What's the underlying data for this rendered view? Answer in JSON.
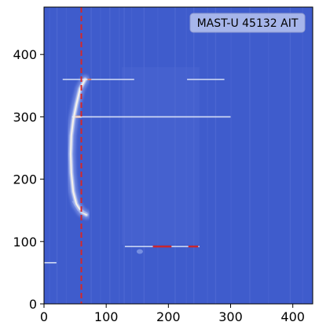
{
  "chart_data": {
    "type": "heatmap",
    "annotation": "MAST-U 45132 AIT",
    "xlim": [
      0,
      432
    ],
    "ylim": [
      0,
      476
    ],
    "x_ticks": [
      0,
      100,
      200,
      300,
      400
    ],
    "y_ticks": [
      0,
      100,
      200,
      300,
      400
    ],
    "background_color": "#3f5ccc",
    "colormap": "coolwarm",
    "vertical_line": {
      "x": 60,
      "style": "dashed",
      "color": "#d62728"
    },
    "hot_features": [
      {
        "kind": "curved-bright-band",
        "x_range": [
          40,
          70
        ],
        "y_range": [
          140,
          360
        ]
      },
      {
        "kind": "horizontal-streak",
        "x_range": [
          30,
          145
        ],
        "y": 360
      },
      {
        "kind": "horizontal-streak",
        "x_range": [
          230,
          290
        ],
        "y": 360
      },
      {
        "kind": "horizontal-streak",
        "x_range": [
          45,
          300
        ],
        "y": 300
      },
      {
        "kind": "horizontal-streak",
        "x_range": [
          130,
          250
        ],
        "y": 92
      },
      {
        "kind": "horizontal-streak",
        "x_range": [
          0,
          20
        ],
        "y": 66
      }
    ]
  }
}
